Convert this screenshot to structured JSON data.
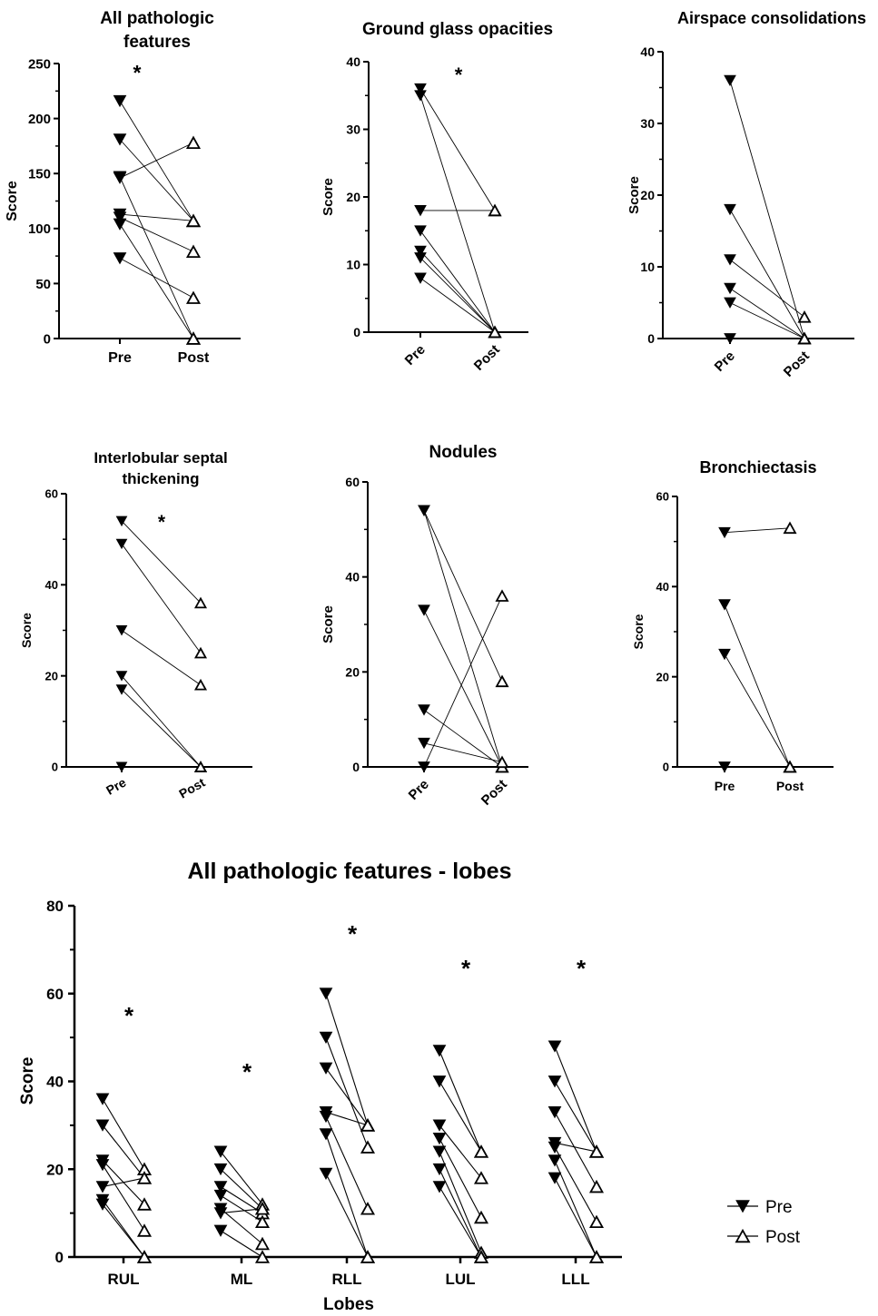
{
  "legend": [
    {
      "label": "Pre",
      "marker": "filled-down-triangle"
    },
    {
      "label": "Post",
      "marker": "open-up-triangle"
    }
  ],
  "chart_data": [
    {
      "type": "scatter",
      "title": "All pathologic features",
      "xlabel": "",
      "ylabel": "Score",
      "categories": [
        "Pre",
        "Post"
      ],
      "ylim": [
        0,
        250
      ],
      "yticks": [
        0,
        50,
        100,
        150,
        200,
        250
      ],
      "annotation": "*",
      "pairs": [
        [
          216,
          107
        ],
        [
          181,
          107
        ],
        [
          147,
          0
        ],
        [
          146,
          178
        ],
        [
          113,
          107
        ],
        [
          110,
          79
        ],
        [
          104,
          0
        ],
        [
          73,
          37
        ]
      ]
    },
    {
      "type": "scatter",
      "title": "Ground glass opacities",
      "xlabel": "",
      "ylabel": "Score",
      "categories": [
        "Pre",
        "Post"
      ],
      "ylim": [
        0,
        40
      ],
      "yticks": [
        0,
        10,
        20,
        30,
        40
      ],
      "annotation": "*",
      "pairs": [
        [
          36,
          18
        ],
        [
          35,
          0
        ],
        [
          18,
          18
        ],
        [
          15,
          0
        ],
        [
          12,
          0
        ],
        [
          11,
          0
        ],
        [
          8,
          0
        ]
      ]
    },
    {
      "type": "scatter",
      "title": "Airspace consolidations",
      "xlabel": "",
      "ylabel": "Score",
      "categories": [
        "Pre",
        "Post"
      ],
      "ylim": [
        0,
        40
      ],
      "yticks": [
        0,
        10,
        20,
        30,
        40
      ],
      "annotation": "",
      "pairs": [
        [
          36,
          0
        ],
        [
          18,
          0
        ],
        [
          11,
          3
        ],
        [
          7,
          0
        ],
        [
          5,
          0
        ],
        [
          0,
          0
        ]
      ]
    },
    {
      "type": "scatter",
      "title": "Interlobular septal thickening",
      "xlabel": "",
      "ylabel": "Score",
      "categories": [
        "Pre",
        "Post"
      ],
      "ylim": [
        0,
        60
      ],
      "yticks": [
        0,
        20,
        40,
        60
      ],
      "annotation": "*",
      "pairs": [
        [
          54,
          36
        ],
        [
          49,
          25
        ],
        [
          30,
          18
        ],
        [
          20,
          0
        ],
        [
          17,
          0
        ],
        [
          0,
          0
        ]
      ]
    },
    {
      "type": "scatter",
      "title": "Nodules",
      "xlabel": "",
      "ylabel": "Score",
      "categories": [
        "Pre",
        "Post"
      ],
      "ylim": [
        0,
        60
      ],
      "yticks": [
        0,
        20,
        40,
        60
      ],
      "annotation": "",
      "pairs": [
        [
          54,
          18
        ],
        [
          54,
          0
        ],
        [
          33,
          0
        ],
        [
          12,
          0
        ],
        [
          5,
          1
        ],
        [
          0,
          36
        ]
      ]
    },
    {
      "type": "scatter",
      "title": "Bronchiectasis",
      "xlabel": "",
      "ylabel": "Score",
      "categories": [
        "Pre",
        "Post"
      ],
      "ylim": [
        0,
        60
      ],
      "yticks": [
        0,
        20,
        40,
        60
      ],
      "annotation": "",
      "pairs": [
        [
          52,
          53
        ],
        [
          36,
          0
        ],
        [
          25,
          0
        ],
        [
          0,
          0
        ]
      ]
    },
    {
      "type": "scatter",
      "title": "All pathologic features - lobes",
      "xlabel": "Lobes",
      "ylabel": "Score",
      "ylim": [
        0,
        80
      ],
      "yticks": [
        0,
        20,
        40,
        60,
        80
      ],
      "groups": [
        {
          "label": "RUL",
          "annotation": "*",
          "pairs": [
            [
              36,
              20
            ],
            [
              30,
              18
            ],
            [
              22,
              12
            ],
            [
              21,
              6
            ],
            [
              16,
              18
            ],
            [
              13,
              0
            ],
            [
              12,
              0
            ]
          ]
        },
        {
          "label": "ML",
          "annotation": "*",
          "pairs": [
            [
              24,
              12
            ],
            [
              20,
              11
            ],
            [
              16,
              10
            ],
            [
              14,
              8
            ],
            [
              11,
              3
            ],
            [
              10,
              11
            ],
            [
              6,
              0
            ]
          ]
        },
        {
          "label": "RLL",
          "annotation": "*",
          "pairs": [
            [
              60,
              30
            ],
            [
              50,
              25
            ],
            [
              43,
              30
            ],
            [
              33,
              30
            ],
            [
              32,
              11
            ],
            [
              28,
              0
            ],
            [
              19,
              0
            ]
          ]
        },
        {
          "label": "LUL",
          "annotation": "*",
          "pairs": [
            [
              47,
              24
            ],
            [
              40,
              24
            ],
            [
              30,
              18
            ],
            [
              27,
              9
            ],
            [
              24,
              1
            ],
            [
              20,
              0
            ],
            [
              16,
              0
            ]
          ]
        },
        {
          "label": "LLL",
          "annotation": "*",
          "pairs": [
            [
              48,
              24
            ],
            [
              40,
              24
            ],
            [
              33,
              16
            ],
            [
              26,
              24
            ],
            [
              25,
              8
            ],
            [
              22,
              0
            ],
            [
              18,
              0
            ]
          ]
        }
      ]
    }
  ]
}
